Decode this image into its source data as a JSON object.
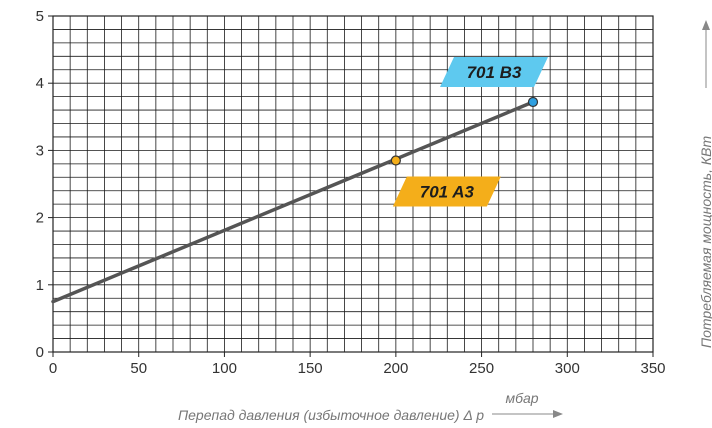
{
  "chart_data": {
    "type": "line",
    "title": "",
    "xlabel": "Перепад давления (избыточное давление) Δ p",
    "xunit": "мбар",
    "ylabel": "Потребляемая мощность, КВт",
    "xlim": [
      0,
      350
    ],
    "ylim": [
      0,
      5
    ],
    "x_ticks": [
      0,
      50,
      100,
      150,
      200,
      250,
      300,
      350
    ],
    "y_ticks": [
      0,
      1,
      2,
      3,
      4,
      5
    ],
    "grid": true,
    "minor_grid_x": 10,
    "minor_grid_y": 0.2,
    "series": [
      {
        "x": [
          0,
          280
        ],
        "y": [
          0.75,
          3.72
        ],
        "color": "#555555"
      }
    ],
    "annotations": [
      {
        "text": "701 B3",
        "x": 280,
        "y": 3.72,
        "color": "#5ec9ef",
        "marker_color": "#2f9fe0"
      },
      {
        "text": "701 A3",
        "x": 200,
        "y": 2.85,
        "color": "#f4ae1a",
        "marker_color": "#f4ae1a"
      }
    ]
  }
}
